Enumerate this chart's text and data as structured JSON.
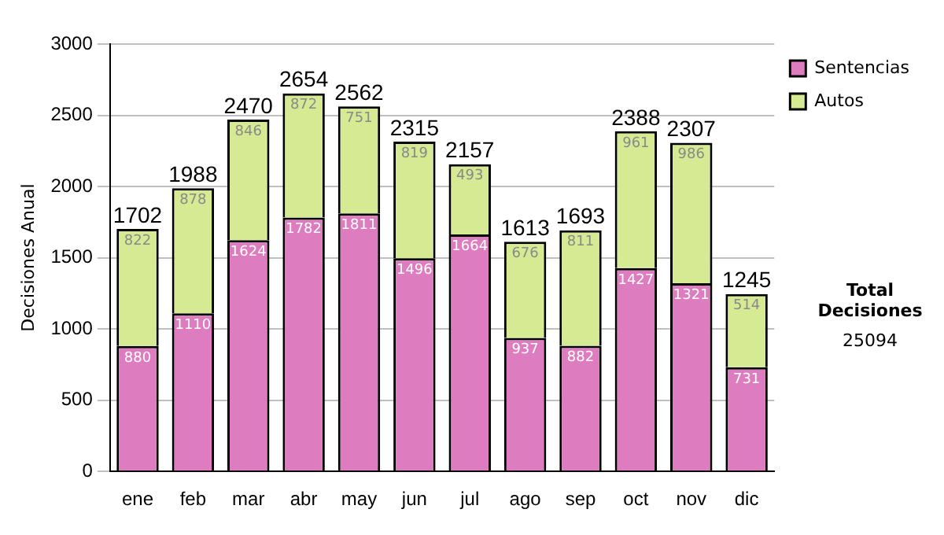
{
  "chart_data": {
    "type": "bar",
    "stacked": true,
    "ylabel": "Decisiones Anual",
    "categories": [
      "ene",
      "feb",
      "mar",
      "abr",
      "may",
      "jun",
      "jul",
      "ago",
      "sep",
      "oct",
      "nov",
      "dic"
    ],
    "series": [
      {
        "name": "Sentencias",
        "color": "#dd7cbf",
        "values": [
          880,
          1110,
          1624,
          1782,
          1811,
          1496,
          1664,
          937,
          882,
          1427,
          1321,
          731
        ]
      },
      {
        "name": "Autos",
        "color": "#d6ea94",
        "values": [
          822,
          878,
          846,
          872,
          751,
          819,
          493,
          676,
          811,
          961,
          986,
          514
        ]
      }
    ],
    "totals": [
      "1702",
      "1988",
      "2470",
      "2654",
      "2562",
      "2315",
      "2157",
      "1613",
      "1693",
      "2388",
      "2307",
      "1245"
    ],
    "data_labels": true,
    "ylim": [
      0,
      3000
    ],
    "yticks": [
      0,
      500,
      1000,
      1500,
      2000,
      2500,
      3000
    ],
    "grid": "y",
    "legend": "right",
    "annotations": [
      "Total Decisiones",
      "25094"
    ]
  }
}
